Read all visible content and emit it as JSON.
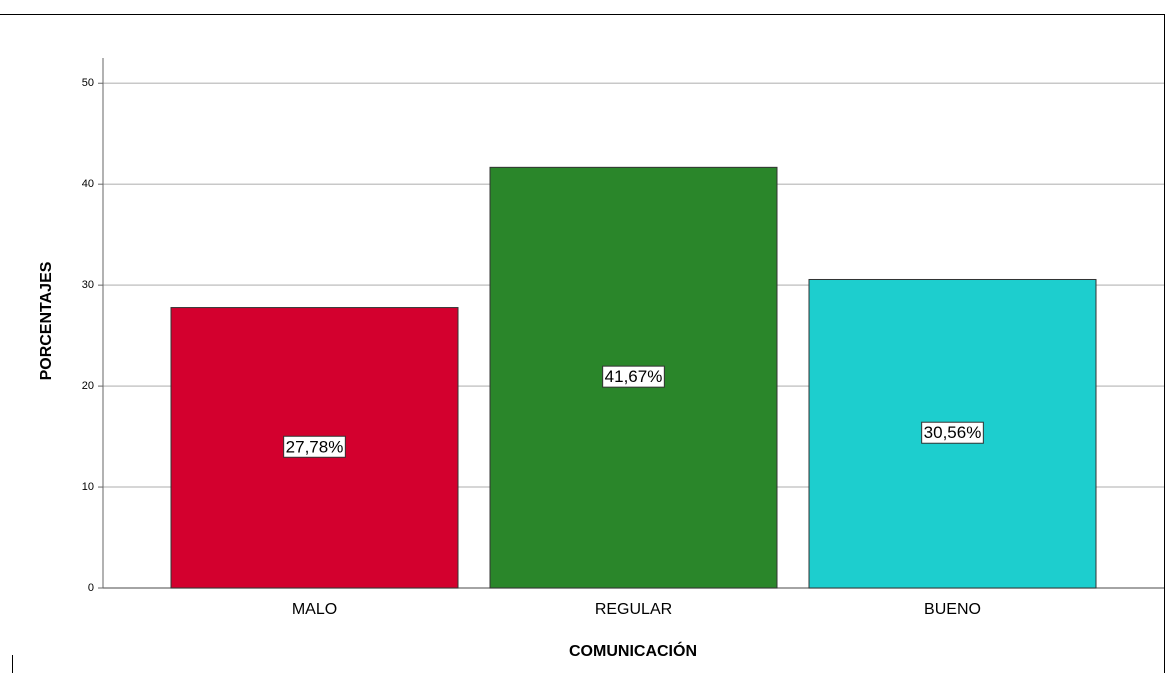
{
  "chart_data": {
    "type": "bar",
    "x_label": "COMUNICACIÓN",
    "y_label": "PORCENTAJES",
    "categories": [
      "MALO",
      "REGULAR",
      "BUENO"
    ],
    "values": [
      27.78,
      41.67,
      30.56
    ],
    "value_labels": [
      "27,78%",
      "41,67%",
      "30,56%"
    ],
    "colors": [
      "#d3002e",
      "#2a862a",
      "#1dcece"
    ],
    "ylim": [
      0,
      52.5
    ],
    "yticks": [
      0,
      10,
      20,
      30,
      40,
      50
    ],
    "grid": true
  }
}
